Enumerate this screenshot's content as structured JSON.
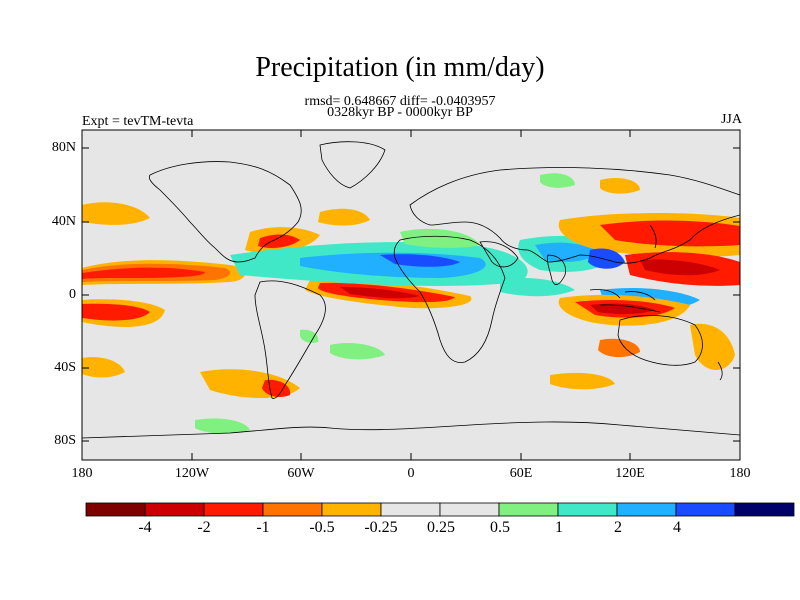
{
  "title": "Precipitation (in mm/day)",
  "stats_line": "rmsd= 0.648667 diff= -0.0403957",
  "period_line": "0328kyr BP - 0000kyr BP",
  "experiment_label": "Expt = tevTM-tevta",
  "season_label": "JJA",
  "lat_labels": [
    "80N",
    "40N",
    "0",
    "40S",
    "80S"
  ],
  "lon_labels": [
    "180",
    "120W",
    "60W",
    "0",
    "60E",
    "120E",
    "180"
  ],
  "colorbar": {
    "colors": [
      "#7f0000",
      "#cc0000",
      "#ff1a00",
      "#ff7300",
      "#ffb300",
      "#e6e6e6",
      "#e6e6e6",
      "#80f080",
      "#40e8c8",
      "#20b0ff",
      "#1a4cff",
      "#00006b"
    ],
    "labels": [
      "-4",
      "-2",
      "-1",
      "-0.5",
      "-0.25",
      "0.25",
      "0.5",
      "1",
      "2",
      "4"
    ]
  },
  "map_colors": {
    "background": "#e6e6e6",
    "coast": "#000000"
  }
}
